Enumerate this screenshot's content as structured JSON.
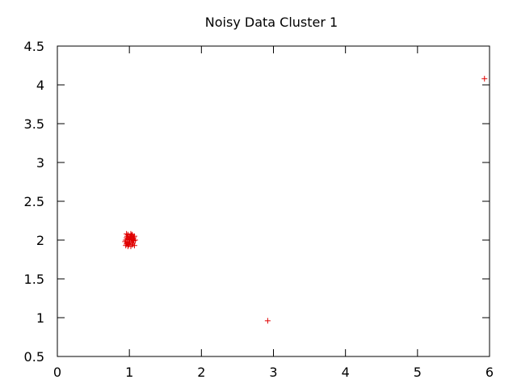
{
  "chart_data": {
    "type": "scatter",
    "title": "Noisy Data Cluster 1",
    "xlabel": "",
    "ylabel": "",
    "xlim": [
      0,
      6
    ],
    "ylim": [
      0.5,
      4.5
    ],
    "x_ticks": [
      "0",
      "1",
      "2",
      "3",
      "4",
      "5",
      "6"
    ],
    "y_ticks": [
      "0.5",
      "1",
      "1.5",
      "2",
      "2.5",
      "3",
      "3.5",
      "4",
      "4.5"
    ],
    "grid": false,
    "legend": "none",
    "marker": "plus",
    "color": "#e00000",
    "series": [
      {
        "points": [
          [
            0.95,
            1.93
          ],
          [
            0.96,
            1.95
          ],
          [
            0.97,
            1.97
          ],
          [
            0.95,
            2.0
          ],
          [
            0.96,
            2.03
          ],
          [
            0.97,
            2.05
          ],
          [
            0.98,
            2.07
          ],
          [
            0.99,
            1.94
          ],
          [
            1.0,
            1.96
          ],
          [
            1.01,
            1.98
          ],
          [
            1.0,
            2.0
          ],
          [
            1.01,
            2.02
          ],
          [
            1.02,
            2.04
          ],
          [
            1.03,
            2.06
          ],
          [
            1.04,
            1.94
          ],
          [
            1.05,
            1.96
          ],
          [
            1.06,
            1.99
          ],
          [
            1.05,
            2.01
          ],
          [
            1.06,
            2.03
          ],
          [
            1.07,
            2.05
          ],
          [
            1.04,
            2.07
          ],
          [
            0.98,
            1.92
          ],
          [
            1.02,
            1.92
          ],
          [
            1.07,
            1.93
          ],
          [
            0.96,
            2.08
          ],
          [
            1.02,
            2.08
          ],
          [
            1.08,
            2.0
          ],
          [
            0.94,
            1.98
          ],
          [
            1.03,
            2.0
          ],
          [
            0.99,
            2.01
          ],
          [
            2.92,
            0.96
          ],
          [
            5.93,
            4.08
          ]
        ]
      }
    ]
  }
}
